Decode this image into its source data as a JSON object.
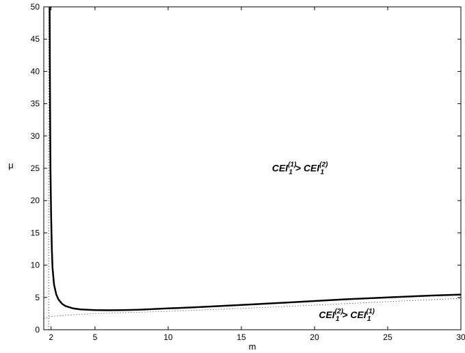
{
  "chart_data": {
    "type": "line",
    "xlabel": "m",
    "ylabel": "μ",
    "xlim": [
      1.5,
      30
    ],
    "ylim": [
      0,
      50
    ],
    "x_ticks": [
      2,
      5,
      10,
      15,
      20,
      25,
      30
    ],
    "y_ticks": [
      0,
      5,
      10,
      15,
      20,
      25,
      30,
      35,
      40,
      45,
      50
    ],
    "grid": false,
    "series": [
      {
        "style": "solid-thick",
        "x": [
          1.9,
          1.93,
          1.96,
          2.0,
          2.05,
          2.1,
          2.2,
          2.35,
          2.5,
          2.75,
          3.0,
          3.5,
          4.0,
          5.0,
          6.0,
          7.0,
          8.0,
          10.0,
          12.0,
          15.0,
          18.0,
          20.0,
          22.0,
          25.0,
          28.0,
          30.0
        ],
        "y": [
          50.0,
          35.0,
          25.0,
          18.0,
          12.5,
          9.6,
          7.0,
          5.5,
          4.7,
          4.0,
          3.65,
          3.3,
          3.15,
          3.05,
          3.02,
          3.05,
          3.1,
          3.3,
          3.5,
          3.85,
          4.2,
          4.45,
          4.7,
          5.0,
          5.3,
          5.45
        ]
      },
      {
        "style": "dotted-thin",
        "x": [
          1.5,
          2.0,
          3.0,
          5.0,
          7.0,
          10.0,
          15.0,
          20.0,
          25.0,
          30.0
        ],
        "y": [
          1.75,
          2.05,
          2.25,
          2.5,
          2.65,
          2.85,
          3.3,
          3.8,
          4.35,
          4.85
        ]
      },
      {
        "style": "dotted-thin",
        "x": [
          1.85,
          1.85
        ],
        "y": [
          0.0,
          50.0
        ]
      }
    ],
    "annotations": [
      {
        "x": 19.0,
        "y": 24.5,
        "parts": [
          {
            "text": "CEI",
            "kind": "base"
          },
          {
            "text": "(1)",
            "kind": "sup"
          },
          {
            "text": "1",
            "kind": "sub"
          },
          {
            "text": " > CEI",
            "kind": "base"
          },
          {
            "text": "(2)",
            "kind": "sup"
          },
          {
            "text": "1",
            "kind": "sub"
          }
        ]
      },
      {
        "x": 22.2,
        "y": 1.8,
        "parts": [
          {
            "text": "CEI",
            "kind": "base"
          },
          {
            "text": "(2)",
            "kind": "sup"
          },
          {
            "text": "1",
            "kind": "sub"
          },
          {
            "text": " > CEI",
            "kind": "base"
          },
          {
            "text": "(1)",
            "kind": "sup"
          },
          {
            "text": "1",
            "kind": "sub"
          }
        ]
      }
    ]
  }
}
